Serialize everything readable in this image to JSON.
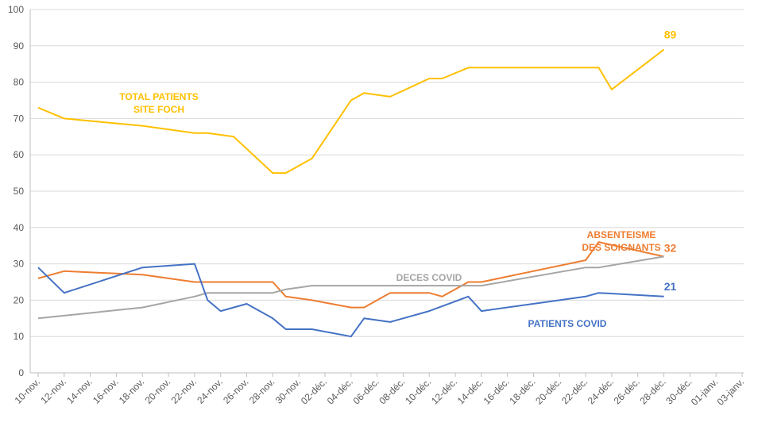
{
  "chart_data": {
    "type": "line",
    "ylim": [
      0,
      100
    ],
    "yticks": [
      0,
      10,
      20,
      30,
      40,
      50,
      60,
      70,
      80,
      90,
      100
    ],
    "grid": true,
    "x_ticks": [
      "10-nov.",
      "12-nov.",
      "14-nov.",
      "16-nov.",
      "18-nov.",
      "20-nov.",
      "22-nov.",
      "24-nov.",
      "26-nov.",
      "28-nov.",
      "30-nov.",
      "02-déc.",
      "04-déc.",
      "06-déc.",
      "08-déc.",
      "10-déc.",
      "12-déc.",
      "14-déc.",
      "16-déc.",
      "18-déc.",
      "20-déc.",
      "22-déc.",
      "24-déc.",
      "26-déc.",
      "28-déc.",
      "30-déc.",
      "01-janv.",
      "03-janv."
    ],
    "series": [
      {
        "name": "TOTAL PATIENTS SITE FOCH",
        "color": "#FFC000",
        "points": [
          [
            "10-nov.",
            73
          ],
          [
            "12-nov.",
            70
          ],
          [
            "18-nov.",
            68
          ],
          [
            "22-nov.",
            66
          ],
          [
            "23-nov.",
            66
          ],
          [
            "25-nov.",
            65
          ],
          [
            "28-nov.",
            55
          ],
          [
            "29-nov.",
            55
          ],
          [
            "01-déc.",
            59
          ],
          [
            "04-déc.",
            75
          ],
          [
            "05-déc.",
            77
          ],
          [
            "07-déc.",
            76
          ],
          [
            "10-déc.",
            81
          ],
          [
            "11-déc.",
            81
          ],
          [
            "13-déc.",
            84
          ],
          [
            "14-déc.",
            84
          ],
          [
            "22-déc.",
            84
          ],
          [
            "23-déc.",
            84
          ],
          [
            "24-déc.",
            78
          ],
          [
            "28-déc.",
            89
          ]
        ],
        "end_label": "89"
      },
      {
        "name": "ABSENTEISME DES SOIGNANTS",
        "color": "#ED7D31",
        "points": [
          [
            "10-nov.",
            26
          ],
          [
            "12-nov.",
            28
          ],
          [
            "18-nov.",
            27
          ],
          [
            "22-nov.",
            25
          ],
          [
            "23-nov.",
            25
          ],
          [
            "28-nov.",
            25
          ],
          [
            "29-nov.",
            21
          ],
          [
            "01-déc.",
            20
          ],
          [
            "04-déc.",
            18
          ],
          [
            "05-déc.",
            18
          ],
          [
            "07-déc.",
            22
          ],
          [
            "10-déc.",
            22
          ],
          [
            "11-déc.",
            21
          ],
          [
            "13-déc.",
            25
          ],
          [
            "14-déc.",
            25
          ],
          [
            "22-déc.",
            31
          ],
          [
            "23-déc.",
            36
          ],
          [
            "28-déc.",
            32
          ]
        ],
        "end_label": "32"
      },
      {
        "name": "DECES COVID",
        "color": "#A5A5A5",
        "points": [
          [
            "10-nov.",
            15
          ],
          [
            "18-nov.",
            18
          ],
          [
            "22-nov.",
            21
          ],
          [
            "23-nov.",
            22
          ],
          [
            "28-nov.",
            22
          ],
          [
            "29-nov.",
            23
          ],
          [
            "01-déc.",
            24
          ],
          [
            "14-déc.",
            24
          ],
          [
            "22-déc.",
            29
          ],
          [
            "23-déc.",
            29
          ],
          [
            "28-déc.",
            32
          ]
        ],
        "end_label": ""
      },
      {
        "name": "PATIENTS COVID",
        "color": "#4472C4",
        "points": [
          [
            "10-nov.",
            29
          ],
          [
            "12-nov.",
            22
          ],
          [
            "18-nov.",
            29
          ],
          [
            "22-nov.",
            30
          ],
          [
            "23-nov.",
            20
          ],
          [
            "24-nov.",
            17
          ],
          [
            "26-nov.",
            19
          ],
          [
            "28-nov.",
            15
          ],
          [
            "29-nov.",
            12
          ],
          [
            "01-déc.",
            12
          ],
          [
            "04-déc.",
            10
          ],
          [
            "05-déc.",
            15
          ],
          [
            "07-déc.",
            14
          ],
          [
            "10-déc.",
            17
          ],
          [
            "13-déc.",
            21
          ],
          [
            "14-déc.",
            17
          ],
          [
            "22-déc.",
            21
          ],
          [
            "23-déc.",
            22
          ],
          [
            "28-déc.",
            21
          ]
        ],
        "end_label": "21"
      }
    ],
    "series_labels": [
      {
        "lines": [
          "TOTAL PATIENTS",
          "SITE FOCH"
        ],
        "color": "#FFC000"
      },
      {
        "lines": [
          "ABSENTEISME",
          "DES SOIGNANTS"
        ],
        "color": "#ED7D31"
      },
      {
        "lines": [
          "DECES COVID"
        ],
        "color": "#A5A5A5"
      },
      {
        "lines": [
          "PATIENTS COVID"
        ],
        "color": "#4472C4"
      }
    ]
  }
}
